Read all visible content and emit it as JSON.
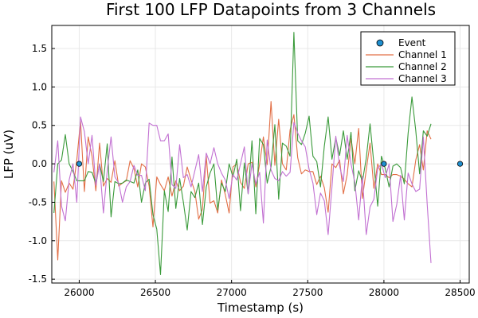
{
  "chart_data": {
    "type": "line",
    "title": "First 100 LFP Datapoints from 3 Channels",
    "xlabel": "Timestamp (s)",
    "ylabel": "LFP (uV)",
    "xlim": [
      25820,
      28560
    ],
    "ylim": [
      -1.55,
      1.8
    ],
    "xticks": [
      26000,
      26500,
      27000,
      27500,
      28000,
      28500
    ],
    "yticks": [
      -1.5,
      -1.0,
      -0.5,
      0.0,
      0.5,
      1.0,
      1.5
    ],
    "xtick_labels": [
      "26000",
      "26500",
      "27000",
      "27500",
      "28000",
      "28500"
    ],
    "ytick_labels": [
      "-1.5",
      "-1.0",
      "-0.5",
      "0.0",
      "0.5",
      "1.0",
      "1.5"
    ],
    "grid": true,
    "legend_position": "top-right",
    "x": [
      25834,
      25859,
      25884,
      25909,
      25934,
      25959,
      25984,
      26009,
      26034,
      26059,
      26084,
      26109,
      26134,
      26159,
      26184,
      26209,
      26234,
      26259,
      26284,
      26309,
      26334,
      26359,
      26384,
      26409,
      26434,
      26459,
      26484,
      26509,
      26534,
      26559,
      26584,
      26609,
      26634,
      26659,
      26684,
      26709,
      26734,
      26759,
      26784,
      26809,
      26834,
      26859,
      26884,
      26909,
      26934,
      26959,
      26984,
      27009,
      27034,
      27059,
      27084,
      27109,
      27134,
      27159,
      27184,
      27209,
      27234,
      27259,
      27284,
      27309,
      27334,
      27359,
      27384,
      27409,
      27434,
      27459,
      27484,
      27509,
      27534,
      27559,
      27584,
      27609,
      27634,
      27659,
      27684,
      27709,
      27734,
      27759,
      27784,
      27809,
      27834,
      27859,
      27884,
      27909,
      27934,
      27959,
      27984,
      28009,
      28034,
      28059,
      28084,
      28109,
      28134,
      28159,
      28184,
      28209,
      28234,
      28259,
      28284,
      28309
    ],
    "series": [
      {
        "name": "Channel 1",
        "color": "#e26f46",
        "values": [
          -0.23,
          -1.25,
          -0.22,
          -0.37,
          -0.25,
          -0.33,
          0.05,
          0.56,
          -0.36,
          0.35,
          0.1,
          -0.35,
          0.27,
          -0.29,
          -0.19,
          -0.24,
          0.04,
          -0.29,
          -0.25,
          -0.22,
          0.04,
          -0.06,
          -0.3,
          0.0,
          -0.04,
          -0.29,
          -0.82,
          -0.17,
          -0.27,
          -0.35,
          -0.17,
          -0.42,
          -0.22,
          -0.35,
          -0.29,
          -0.04,
          -0.21,
          -0.36,
          -0.72,
          -0.59,
          0.1,
          -0.51,
          -0.48,
          -0.64,
          -0.21,
          -0.4,
          -0.64,
          -0.04,
          0.0,
          -0.24,
          -0.32,
          0.0,
          0.02,
          -0.3,
          0.0,
          0.35,
          -0.01,
          0.81,
          -0.02,
          0.58,
          0.0,
          -0.08,
          0.44,
          0.64,
          0.08,
          -0.13,
          -0.08,
          -0.1,
          -0.1,
          -0.27,
          -0.16,
          -0.31,
          -0.63,
          0.0,
          -0.05,
          0.05,
          -0.39,
          -0.14,
          0.33,
          0.0,
          0.46,
          -0.45,
          -0.08,
          0.27,
          -0.32,
          0.0,
          -0.14,
          -0.14,
          -0.18,
          -0.14,
          -0.14,
          -0.16,
          -0.2,
          -0.26,
          -0.3,
          0.05,
          0.25,
          -0.08,
          0.43,
          0.32
        ]
      },
      {
        "name": "Channel 2",
        "color": "#3a9a3a",
        "values": [
          -0.64,
          0.0,
          0.05,
          0.38,
          0.0,
          -0.1,
          -0.22,
          -0.22,
          -0.22,
          -0.1,
          -0.11,
          -0.26,
          0.0,
          -0.23,
          0.26,
          -0.69,
          -0.23,
          -0.26,
          -0.25,
          -0.21,
          -0.23,
          -0.25,
          -0.08,
          -0.5,
          -0.25,
          -0.2,
          -0.66,
          -0.85,
          -1.44,
          -0.35,
          -0.62,
          0.09,
          -0.58,
          -0.19,
          -0.5,
          -0.86,
          -0.36,
          -0.44,
          -0.25,
          -0.79,
          -0.3,
          -0.12,
          0.0,
          -0.6,
          -0.25,
          -0.36,
          0.0,
          -0.17,
          0.06,
          -0.61,
          0.01,
          -0.39,
          0.3,
          -0.65,
          0.33,
          0.25,
          -0.25,
          -0.04,
          0.51,
          -0.46,
          0.27,
          0.23,
          0.1,
          1.71,
          0.3,
          0.25,
          0.4,
          0.62,
          0.1,
          0.03,
          -0.3,
          0.23,
          0.61,
          0.06,
          0.34,
          0.11,
          0.43,
          0.06,
          0.41,
          -0.35,
          -0.09,
          -0.23,
          0.07,
          0.52,
          0.0,
          -0.55,
          0.1,
          -0.06,
          -0.3,
          -0.03,
          0.0,
          -0.05,
          -0.26,
          0.4,
          0.87,
          0.43,
          -0.13,
          0.43,
          0.36,
          0.52
        ]
      },
      {
        "name": "Channel 3",
        "color": "#c271d2",
        "values": [
          -0.11,
          0.3,
          -0.55,
          -0.74,
          -0.21,
          0.0,
          -0.5,
          0.61,
          0.42,
          0.0,
          0.37,
          -0.28,
          0.0,
          -0.64,
          -0.09,
          0.35,
          -0.17,
          -0.25,
          -0.5,
          -0.3,
          -0.23,
          -0.02,
          -0.15,
          -0.15,
          -0.35,
          0.53,
          0.5,
          0.5,
          0.3,
          0.3,
          0.39,
          -0.27,
          -0.32,
          0.25,
          -0.18,
          -0.14,
          -0.3,
          -0.09,
          0.12,
          -0.36,
          0.14,
          0.0,
          0.21,
          0.0,
          -0.12,
          -0.21,
          -0.45,
          -0.14,
          -0.21,
          0.0,
          0.22,
          -0.39,
          0.0,
          -0.26,
          -0.11,
          -0.77,
          0.31,
          -0.08,
          -0.19,
          -0.22,
          -0.1,
          -0.16,
          -0.11,
          0.54,
          0.4,
          0.3,
          0.22,
          -0.07,
          -0.25,
          -0.66,
          -0.38,
          -0.48,
          -0.92,
          -0.3,
          0.36,
          -0.03,
          -0.23,
          0.37,
          0.0,
          -0.24,
          -0.73,
          -0.16,
          -0.92,
          -0.56,
          -0.46,
          -0.06,
          0.0,
          -0.18,
          0.0,
          -0.75,
          -0.53,
          -0.15,
          -0.73,
          -0.12,
          -0.26,
          -0.36,
          -0.33,
          0.35,
          -0.52,
          -1.29
        ]
      },
      {
        "name": "Event",
        "type": "scatter",
        "color": "#1f8fcf",
        "x": [
          26000,
          28000,
          28500
        ],
        "values": [
          0.0,
          0.0,
          0.0
        ]
      }
    ]
  }
}
